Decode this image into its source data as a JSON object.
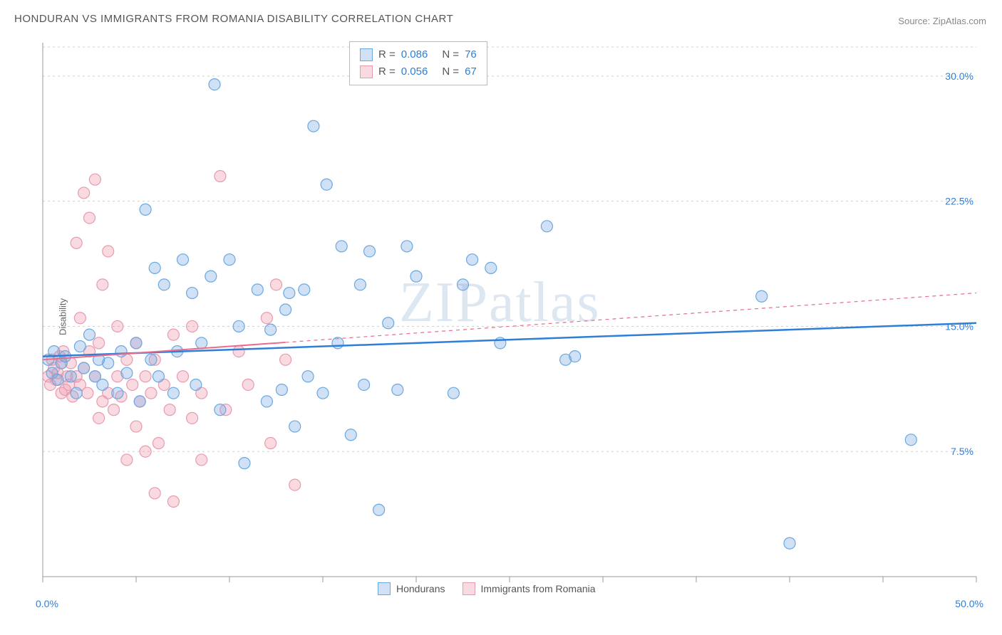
{
  "title": "HONDURAN VS IMMIGRANTS FROM ROMANIA DISABILITY CORRELATION CHART",
  "source_label": "Source:",
  "source_name": "ZipAtlas.com",
  "y_axis_label": "Disability",
  "watermark": "ZIPatlas",
  "chart": {
    "type": "scatter",
    "xlim": [
      0,
      50
    ],
    "ylim": [
      0,
      32
    ],
    "x_ticks": [
      0,
      5,
      10,
      15,
      20,
      25,
      30,
      35,
      40,
      45,
      50
    ],
    "y_gridlines": [
      7.5,
      15.0,
      22.5,
      30.0
    ],
    "y_tick_labels": [
      "7.5%",
      "15.0%",
      "22.5%",
      "30.0%"
    ],
    "x_min_label": "0.0%",
    "x_max_label": "50.0%",
    "background_color": "#ffffff",
    "grid_color": "#d0d0d0",
    "axis_color": "#999999",
    "marker_radius": 8,
    "marker_stroke_width": 1.2,
    "series": [
      {
        "name": "Hondurans",
        "fill": "rgba(120,170,230,0.35)",
        "stroke": "#6aa8e0",
        "R": "0.086",
        "N": "76",
        "trend": {
          "y_start": 13.2,
          "y_end": 15.2,
          "x_start": 0,
          "x_end": 50,
          "solid_end": 50,
          "color": "#2f7ed8",
          "width": 2.5
        },
        "points": [
          [
            0.3,
            13.0
          ],
          [
            0.5,
            12.2
          ],
          [
            0.6,
            13.5
          ],
          [
            0.8,
            11.8
          ],
          [
            1.0,
            12.8
          ],
          [
            1.2,
            13.2
          ],
          [
            1.5,
            12.0
          ],
          [
            1.8,
            11.0
          ],
          [
            2.0,
            13.8
          ],
          [
            2.2,
            12.5
          ],
          [
            2.5,
            14.5
          ],
          [
            2.8,
            12.0
          ],
          [
            3.0,
            13.0
          ],
          [
            3.2,
            11.5
          ],
          [
            3.5,
            12.8
          ],
          [
            4.0,
            11.0
          ],
          [
            4.2,
            13.5
          ],
          [
            4.5,
            12.2
          ],
          [
            5.0,
            14.0
          ],
          [
            5.2,
            10.5
          ],
          [
            5.5,
            22.0
          ],
          [
            5.8,
            13.0
          ],
          [
            6.0,
            18.5
          ],
          [
            6.2,
            12.0
          ],
          [
            6.5,
            17.5
          ],
          [
            7.0,
            11.0
          ],
          [
            7.2,
            13.5
          ],
          [
            7.5,
            19.0
          ],
          [
            8.0,
            17.0
          ],
          [
            8.2,
            11.5
          ],
          [
            8.5,
            14.0
          ],
          [
            9.0,
            18.0
          ],
          [
            9.2,
            29.5
          ],
          [
            9.5,
            10.0
          ],
          [
            10.0,
            19.0
          ],
          [
            10.5,
            15.0
          ],
          [
            10.8,
            6.8
          ],
          [
            11.5,
            17.2
          ],
          [
            12.0,
            10.5
          ],
          [
            12.2,
            14.8
          ],
          [
            12.8,
            11.2
          ],
          [
            13.0,
            16.0
          ],
          [
            13.2,
            17.0
          ],
          [
            13.5,
            9.0
          ],
          [
            14.0,
            17.2
          ],
          [
            14.2,
            12.0
          ],
          [
            14.5,
            27.0
          ],
          [
            15.0,
            11.0
          ],
          [
            15.2,
            23.5
          ],
          [
            15.8,
            14.0
          ],
          [
            16.0,
            19.8
          ],
          [
            16.5,
            8.5
          ],
          [
            17.0,
            17.5
          ],
          [
            17.2,
            11.5
          ],
          [
            17.5,
            19.5
          ],
          [
            18.0,
            4.0
          ],
          [
            18.5,
            15.2
          ],
          [
            19.0,
            11.2
          ],
          [
            19.5,
            19.8
          ],
          [
            20.0,
            18.0
          ],
          [
            22.0,
            11.0
          ],
          [
            22.5,
            17.5
          ],
          [
            23.0,
            19.0
          ],
          [
            24.0,
            18.5
          ],
          [
            24.5,
            14.0
          ],
          [
            27.0,
            21.0
          ],
          [
            28.0,
            13.0
          ],
          [
            28.5,
            13.2
          ],
          [
            38.5,
            16.8
          ],
          [
            40.0,
            2.0
          ],
          [
            46.5,
            8.2
          ]
        ]
      },
      {
        "name": "Immigrants from Romania",
        "fill": "rgba(240,150,170,0.35)",
        "stroke": "#e89ab0",
        "R": "0.056",
        "N": "67",
        "trend": {
          "y_start": 13.0,
          "y_end": 17.0,
          "x_start": 0,
          "x_end": 50,
          "solid_end": 13,
          "color": "#e86c8a",
          "width": 2
        },
        "points": [
          [
            0.3,
            12.0
          ],
          [
            0.4,
            11.5
          ],
          [
            0.5,
            13.0
          ],
          [
            0.6,
            12.5
          ],
          [
            0.7,
            11.8
          ],
          [
            0.8,
            12.2
          ],
          [
            0.9,
            13.2
          ],
          [
            1.0,
            11.0
          ],
          [
            1.0,
            12.8
          ],
          [
            1.1,
            13.5
          ],
          [
            1.2,
            11.2
          ],
          [
            1.3,
            12.0
          ],
          [
            1.4,
            11.5
          ],
          [
            1.5,
            12.8
          ],
          [
            1.6,
            10.8
          ],
          [
            1.8,
            12.0
          ],
          [
            1.8,
            20.0
          ],
          [
            2.0,
            11.5
          ],
          [
            2.0,
            15.5
          ],
          [
            2.2,
            12.5
          ],
          [
            2.2,
            23.0
          ],
          [
            2.4,
            11.0
          ],
          [
            2.5,
            13.5
          ],
          [
            2.5,
            21.5
          ],
          [
            2.8,
            23.8
          ],
          [
            2.8,
            12.0
          ],
          [
            3.0,
            9.5
          ],
          [
            3.0,
            14.0
          ],
          [
            3.2,
            17.5
          ],
          [
            3.2,
            10.5
          ],
          [
            3.5,
            11.0
          ],
          [
            3.5,
            19.5
          ],
          [
            3.8,
            10.0
          ],
          [
            4.0,
            12.0
          ],
          [
            4.0,
            15.0
          ],
          [
            4.2,
            10.8
          ],
          [
            4.5,
            7.0
          ],
          [
            4.5,
            13.0
          ],
          [
            4.8,
            11.5
          ],
          [
            5.0,
            14.0
          ],
          [
            5.0,
            9.0
          ],
          [
            5.2,
            10.5
          ],
          [
            5.5,
            12.0
          ],
          [
            5.5,
            7.5
          ],
          [
            5.8,
            11.0
          ],
          [
            6.0,
            13.0
          ],
          [
            6.0,
            5.0
          ],
          [
            6.2,
            8.0
          ],
          [
            6.5,
            11.5
          ],
          [
            6.8,
            10.0
          ],
          [
            7.0,
            14.5
          ],
          [
            7.0,
            4.5
          ],
          [
            7.5,
            12.0
          ],
          [
            8.0,
            9.5
          ],
          [
            8.0,
            15.0
          ],
          [
            8.5,
            11.0
          ],
          [
            8.5,
            7.0
          ],
          [
            9.5,
            24.0
          ],
          [
            9.8,
            10.0
          ],
          [
            10.5,
            13.5
          ],
          [
            11.0,
            11.5
          ],
          [
            12.0,
            15.5
          ],
          [
            12.2,
            8.0
          ],
          [
            12.5,
            17.5
          ],
          [
            13.0,
            13.0
          ],
          [
            13.5,
            5.5
          ]
        ]
      }
    ]
  },
  "stats_box": {
    "value_color": "#2f7ed8",
    "label_color": "#555"
  },
  "legend": {
    "label1": "Hondurans",
    "label2": "Immigrants from Romania"
  }
}
